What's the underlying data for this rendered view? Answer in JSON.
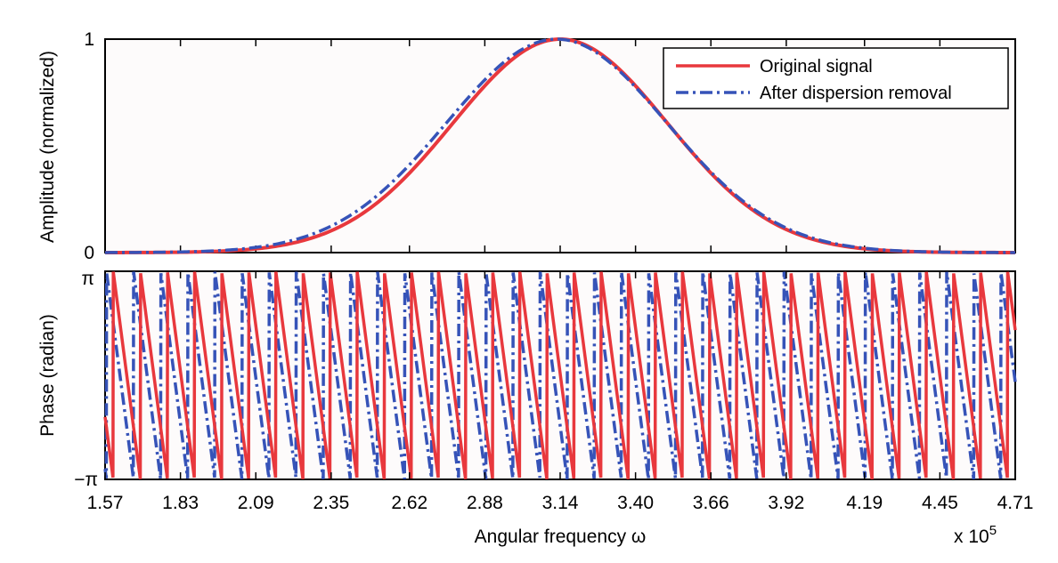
{
  "chart_data": [
    {
      "type": "line",
      "panel": "amplitude",
      "ylabel": "Amplitude (normalized)",
      "xlim": [
        1.57,
        4.71
      ],
      "ylim": [
        0,
        1
      ],
      "ytick_labels": [
        "0",
        "1"
      ],
      "gaussian_center": 3.14,
      "gaussian_sigma": 0.37,
      "grid": false,
      "legend_position": "top-right",
      "series": [
        {
          "name": "Original signal",
          "color": "#e8383d",
          "style": "solid",
          "x": [
            1.57,
            1.83,
            2.09,
            2.35,
            2.62,
            2.88,
            3.14,
            3.4,
            3.66,
            3.92,
            4.19,
            4.45,
            4.71
          ],
          "y": [
            0.0,
            0.002,
            0.018,
            0.1,
            0.37,
            0.78,
            1.0,
            0.78,
            0.37,
            0.1,
            0.018,
            0.002,
            0.0
          ]
        },
        {
          "name": "After dispersion removal",
          "color": "#3653b8",
          "style": "dash-dot",
          "x": [
            1.57,
            1.83,
            2.09,
            2.35,
            2.62,
            2.88,
            3.14,
            3.4,
            3.66,
            3.92,
            4.19,
            4.45,
            4.71
          ],
          "y": [
            0.0,
            0.003,
            0.025,
            0.12,
            0.4,
            0.8,
            1.0,
            0.76,
            0.34,
            0.09,
            0.015,
            0.002,
            0.0
          ]
        }
      ]
    },
    {
      "type": "line",
      "panel": "phase",
      "ylabel": "Phase (radian)",
      "xlabel": "Angular frequency ω",
      "x_multiplier": "x 10",
      "x_multiplier_exp": "5",
      "xlim": [
        1.57,
        4.71
      ],
      "ylim": [
        -3.14159,
        3.14159
      ],
      "ytick_labels": [
        "π",
        "−π"
      ],
      "xtick_labels": [
        "1.57",
        "1.83",
        "2.09",
        "2.35",
        "2.62",
        "2.88",
        "3.14",
        "3.40",
        "3.66",
        "3.92",
        "4.19",
        "4.45",
        "4.71"
      ],
      "xticks": [
        1.57,
        1.83,
        2.09,
        2.35,
        2.62,
        2.88,
        3.14,
        3.4,
        3.66,
        3.92,
        4.19,
        4.45,
        4.71
      ],
      "grid": false,
      "series": [
        {
          "name": "Original signal",
          "color": "#e8383d",
          "style": "solid",
          "wrap_period": 0.0935,
          "phase_offset_fraction": 0.7
        },
        {
          "name": "After dispersion removal",
          "color": "#3653b8",
          "style": "dash-dot",
          "wrap_period": 0.0935,
          "phase_offset_fraction": 0.95
        }
      ]
    }
  ]
}
